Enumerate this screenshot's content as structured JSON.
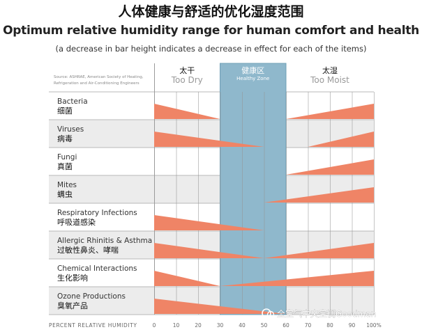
{
  "title_cn": "人体健康与舒适的优化湿度范围",
  "title_en": "Optimum relative humidity range for human comfort and health",
  "subtitle": "(a decrease in bar height indicates a decrease in effect for each of the items)",
  "source": [
    "Source: ASHRAE, American Society of Heating,",
    "Refrigeration and Air-Conditioning Engineers"
  ],
  "zones": {
    "dry": {
      "cn": "太干",
      "en": "Too Dry"
    },
    "healthy": {
      "cn": "健康区",
      "en": "Healthy Zone"
    },
    "moist": {
      "cn": "太湿",
      "en": "Too Moist"
    }
  },
  "watermark": "全空气中央空调Goodman",
  "colors": {
    "bar": "#ef8466",
    "zone": "#8fb8cc",
    "zone_border": "#6f9fb6",
    "row_alt": "#ececec"
  },
  "chart_data": {
    "type": "area",
    "xlabel": "PERCENT RELATIVE HUMIDITY",
    "xlim": [
      0,
      100
    ],
    "xticks": [
      "0",
      "10",
      "20",
      "30",
      "40",
      "50",
      "60",
      "70",
      "80",
      "90",
      "100%"
    ],
    "healthy_zone": [
      30,
      60
    ],
    "series": [
      {
        "name": "Bacteria",
        "name_cn": "细菌",
        "segments": [
          {
            "x": [
              0,
              30
            ],
            "y": [
              1,
              0
            ]
          },
          {
            "x": [
              60,
              100
            ],
            "y": [
              0,
              1
            ]
          }
        ]
      },
      {
        "name": "Viruses",
        "name_cn": "病毒",
        "segments": [
          {
            "x": [
              0,
              50
            ],
            "y": [
              1,
              0
            ]
          },
          {
            "x": [
              70,
              100
            ],
            "y": [
              0,
              1
            ]
          }
        ]
      },
      {
        "name": "Fungi",
        "name_cn": "真菌",
        "segments": [
          {
            "x": [
              60,
              100
            ],
            "y": [
              0,
              1
            ]
          }
        ]
      },
      {
        "name": "Mites",
        "name_cn": "螨虫",
        "segments": [
          {
            "x": [
              50,
              100
            ],
            "y": [
              0,
              1
            ]
          }
        ]
      },
      {
        "name": "Respiratory Infections",
        "name_cn": "呼吸道感染",
        "segments": [
          {
            "x": [
              0,
              50
            ],
            "y": [
              1,
              0
            ]
          }
        ]
      },
      {
        "name": "Allergic Rhinitis & Asthma",
        "name_cn": "过敏性鼻炎、哮喘",
        "segments": [
          {
            "x": [
              0,
              50
            ],
            "y": [
              1,
              0
            ]
          },
          {
            "x": [
              50,
              100
            ],
            "y": [
              0,
              1
            ]
          }
        ]
      },
      {
        "name": "Chemical Interactions",
        "name_cn": "生化影响",
        "segments": [
          {
            "x": [
              0,
              30
            ],
            "y": [
              1,
              0
            ]
          },
          {
            "x": [
              30,
              100
            ],
            "y": [
              0,
              1
            ]
          }
        ]
      },
      {
        "name": "Ozone Productions",
        "name_cn": "臭氧产品",
        "segments": [
          {
            "x": [
              0,
              60
            ],
            "y": [
              1,
              0
            ]
          }
        ]
      }
    ]
  }
}
